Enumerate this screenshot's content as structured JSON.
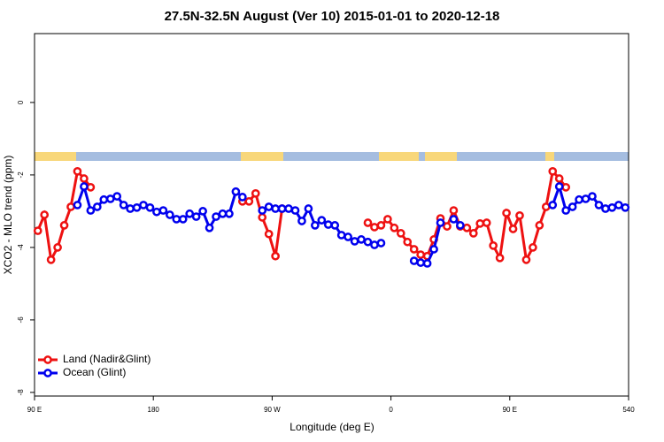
{
  "chart_data": {
    "type": "line",
    "title": "27.5N-32.5N August (Ver 10)   2015-01-01 to 2020-12-18",
    "xlabel": "Longitude (deg E)",
    "ylabel": "XCO2 - MLO trend (ppm)",
    "x": [
      92.5,
      97.5,
      102.5,
      107.5,
      112.5,
      117.5,
      122.5,
      127.5,
      132.5,
      137.5,
      142.5,
      147.5,
      152.5,
      157.5,
      162.5,
      167.5,
      172.5,
      177.5,
      182.5,
      187.5,
      192.5,
      197.5,
      202.5,
      207.5,
      212.5,
      217.5,
      222.5,
      227.5,
      232.5,
      237.5,
      242.5,
      247.5,
      252.5,
      257.5,
      262.5,
      267.5,
      272.5,
      277.5,
      282.5,
      287.5,
      292.5,
      297.5,
      302.5,
      307.5,
      312.5,
      317.5,
      322.5,
      327.5,
      332.5,
      337.5,
      342.5,
      347.5,
      352.5,
      357.5,
      362.5,
      367.5,
      372.5,
      377.5,
      382.5,
      387.5,
      392.5,
      397.5,
      402.5,
      407.5,
      412.5,
      417.5,
      422.5,
      427.5,
      432.5,
      437.5,
      442.5,
      447.5,
      452.5,
      457.5,
      462.5,
      467.5,
      472.5,
      477.5,
      482.5,
      487.5,
      492.5,
      497.5,
      502.5,
      507.5,
      512.5,
      517.5,
      522.5,
      527.5,
      532.5,
      537.5
    ],
    "series": [
      {
        "name": "Land (Nadir&Glint)",
        "color": "#ee1111",
        "values": [
          -3.54,
          -3.1,
          -4.34,
          -4.0,
          -3.39,
          -2.88,
          -1.9,
          -2.1,
          -2.34,
          null,
          null,
          null,
          null,
          null,
          null,
          null,
          null,
          null,
          null,
          null,
          null,
          null,
          null,
          null,
          null,
          null,
          null,
          null,
          null,
          null,
          null,
          -2.73,
          -2.73,
          -2.51,
          -3.17,
          -3.63,
          -4.24,
          -2.93,
          null,
          null,
          null,
          null,
          null,
          null,
          null,
          null,
          null,
          null,
          null,
          null,
          -3.32,
          -3.44,
          -3.39,
          -3.22,
          -3.46,
          -3.61,
          -3.85,
          -4.05,
          -4.2,
          -4.24,
          -3.78,
          -3.2,
          -3.42,
          -2.98,
          -3.42,
          -3.46,
          -3.61,
          -3.34,
          -3.32,
          -3.95,
          -4.29,
          -3.05,
          -3.49,
          -3.12,
          -4.34,
          -4.0,
          -3.39,
          -2.88,
          -1.9,
          -2.1,
          -2.34,
          null,
          null,
          null,
          null,
          null,
          null,
          null,
          null,
          null
        ]
      },
      {
        "name": "Ocean (Glint)",
        "color": "#0000ee",
        "values": [
          null,
          null,
          null,
          null,
          null,
          null,
          -2.83,
          -2.32,
          -2.98,
          -2.88,
          -2.68,
          -2.66,
          -2.59,
          -2.83,
          -2.93,
          -2.9,
          -2.83,
          -2.9,
          -3.02,
          -2.98,
          -3.1,
          -3.22,
          -3.22,
          -3.07,
          -3.15,
          -3.0,
          -3.46,
          -3.15,
          -3.07,
          -3.07,
          -2.46,
          -2.61,
          null,
          null,
          -2.98,
          -2.88,
          -2.93,
          -2.93,
          -2.93,
          -2.98,
          -3.27,
          -2.93,
          -3.39,
          -3.25,
          -3.37,
          -3.39,
          -3.66,
          -3.71,
          -3.83,
          -3.78,
          -3.85,
          -3.93,
          -3.88,
          null,
          null,
          null,
          null,
          -4.37,
          -4.42,
          -4.44,
          -4.05,
          -3.32,
          null,
          -3.22,
          -3.39,
          null,
          null,
          null,
          null,
          null,
          null,
          null,
          null,
          null,
          null,
          null,
          null,
          null,
          -2.83,
          -2.32,
          -2.98,
          -2.88,
          -2.68,
          -2.66,
          -2.59,
          -2.83,
          -2.93,
          -2.9,
          -2.83,
          -2.9
        ]
      }
    ],
    "xlim": [
      90,
      540
    ],
    "xticks": [
      {
        "value": 90,
        "label": "90 E"
      },
      180,
      {
        "value": 270,
        "label": "90 W"
      },
      {
        "value": 360,
        "label": "0"
      },
      {
        "value": 450,
        "label": "90 E"
      },
      540
    ],
    "ylim": [
      -8.1,
      1.9
    ],
    "yticks": [
      -8,
      -6,
      -4,
      -2,
      0
    ],
    "legend": "bottom-left"
  }
}
